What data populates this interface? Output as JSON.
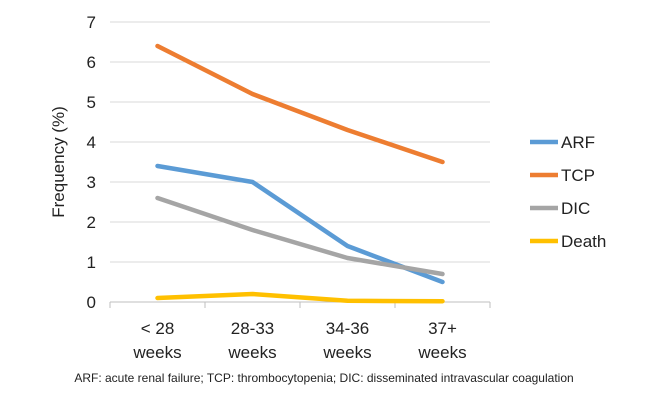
{
  "chart_data": {
    "type": "line",
    "title": "",
    "xlabel": "",
    "ylabel": "Frequency (%)",
    "categories": [
      [
        "< 28",
        "weeks"
      ],
      [
        "28-33",
        "weeks"
      ],
      [
        "34-36",
        "weeks"
      ],
      [
        "37+",
        "weeks"
      ]
    ],
    "ylim": [
      0,
      7
    ],
    "yticks": [
      0,
      1,
      2,
      3,
      4,
      5,
      6,
      7
    ],
    "grid": true,
    "legend_position": "right",
    "series": [
      {
        "name": "ARF",
        "color": "#5b9bd5",
        "values": [
          3.4,
          3.0,
          1.4,
          0.5
        ]
      },
      {
        "name": "TCP",
        "color": "#ed7d31",
        "values": [
          6.4,
          5.2,
          4.3,
          3.5
        ]
      },
      {
        "name": "DIC",
        "color": "#a5a5a5",
        "values": [
          2.6,
          1.8,
          1.1,
          0.7
        ]
      },
      {
        "name": "Death",
        "color": "#ffc000",
        "values": [
          0.1,
          0.2,
          0.03,
          0.02
        ]
      }
    ]
  },
  "footnote": "ARF: acute renal failure;  TCP: thrombocytopenia; DIC: disseminated intravascular coagulation"
}
